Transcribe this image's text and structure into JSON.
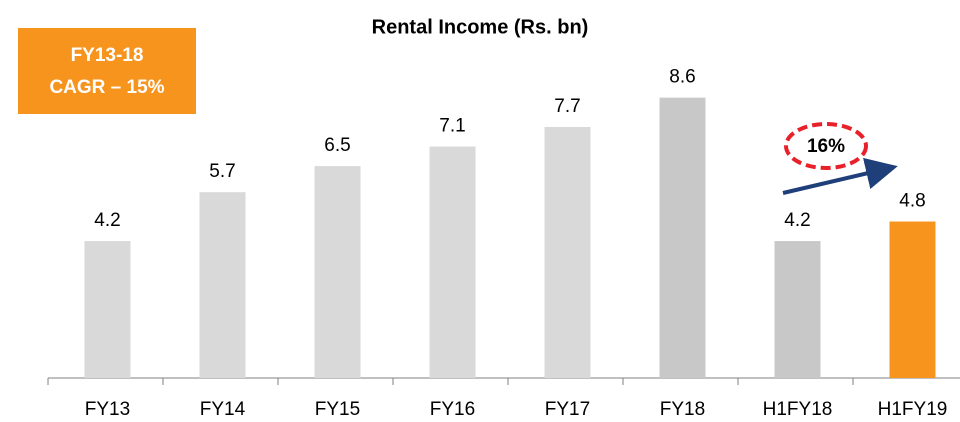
{
  "chart_data": {
    "type": "bar",
    "title": "Rental Income (Rs. bn)",
    "categories": [
      "FY13",
      "FY14",
      "FY15",
      "FY16",
      "FY17",
      "FY18",
      "H1FY18",
      "H1FY19"
    ],
    "values": [
      4.2,
      5.7,
      6.5,
      7.1,
      7.7,
      8.6,
      4.2,
      4.8
    ],
    "colors": [
      "#d9d9d9",
      "#d9d9d9",
      "#d9d9d9",
      "#d9d9d9",
      "#d9d9d9",
      "#c8c8c8",
      "#c8c8c8",
      "#f7941d"
    ],
    "annotations": [
      "FY13-18",
      "CAGR – 15%",
      "16%"
    ]
  }
}
